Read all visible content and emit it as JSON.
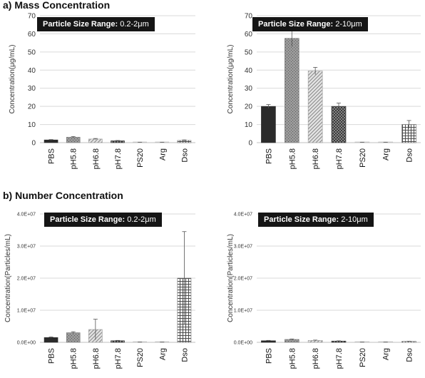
{
  "sections": {
    "a": {
      "title": "a) Mass Concentration"
    },
    "b": {
      "title": "b) Number Concentration"
    }
  },
  "panels": [
    {
      "size_key": "Particle Size Range:",
      "size_value": "0.2-2μm"
    },
    {
      "size_key": "Particle Size Range:",
      "size_value": "2-10μm"
    },
    {
      "size_key": "Particle Size Range:",
      "size_value": "0.2-2μm"
    },
    {
      "size_key": "Particle Size Range:",
      "size_value": "2-10μm"
    }
  ],
  "colors": {
    "gridline": "#d9d9d9",
    "axis": "#bfbfbf",
    "label_bg": "#151515"
  },
  "chart_data": [
    {
      "type": "bar",
      "title": "Particle Size Range: 0.2-2μm",
      "ylabel": "Concentration(μg/mL)",
      "categories": [
        "PBS",
        "pH5.8",
        "pH6.8",
        "pH7.8",
        "PS20",
        "Arg",
        "Dso"
      ],
      "values": [
        1.5,
        3,
        2,
        1,
        0.2,
        0.2,
        1.2
      ],
      "errors": [
        0.2,
        0.4,
        0.3,
        0.2,
        0.05,
        0.05,
        0.3
      ],
      "ylim": [
        0,
        70
      ],
      "yticks": [
        "0",
        "10",
        "20",
        "30",
        "40",
        "50",
        "60",
        "70"
      ],
      "grid": true
    },
    {
      "type": "bar",
      "title": "Particle Size Range: 2-10μm",
      "ylabel": "Concentration(μg/mL)",
      "categories": [
        "PBS",
        "pH5.8",
        "pH6.8",
        "pH7.8",
        "PS20",
        "Arg",
        "Dso"
      ],
      "values": [
        20,
        57.5,
        39.5,
        20,
        0.2,
        0.2,
        10
      ],
      "errors": [
        1,
        4.5,
        2,
        1.8,
        0.05,
        0.05,
        2.2
      ],
      "ylim": [
        0,
        70
      ],
      "yticks": [
        "0",
        "10",
        "20",
        "30",
        "40",
        "50",
        "60",
        "70"
      ],
      "grid": true
    },
    {
      "type": "bar",
      "title": "Particle Size Range: 0.2-2μm",
      "ylabel": "Concentration(Particles/mL)",
      "categories": [
        "PBS",
        "pH5.8",
        "pH6.8",
        "pH7.8",
        "PS20",
        "Arg",
        "Dso"
      ],
      "values": [
        1500000,
        3000000,
        4000000,
        500000,
        50000,
        50000,
        20000000
      ],
      "errors": [
        200000,
        300000,
        3200000,
        100000,
        10000,
        10000,
        14500000
      ],
      "ylim": [
        0,
        40000000
      ],
      "yticks": [
        "0.0E+00",
        "1.0E+07",
        "2.0E+07",
        "3.0E+07",
        "4.0E+07"
      ],
      "grid": true
    },
    {
      "type": "bar",
      "title": "Particle Size Range: 2-10μm",
      "ylabel": "Concentration(Particles/mL)",
      "categories": [
        "PBS",
        "pH5.8",
        "pH6.8",
        "pH7.8",
        "PS20",
        "Arg",
        "Dso"
      ],
      "values": [
        500000,
        900000,
        600000,
        400000,
        50000,
        50000,
        300000
      ],
      "errors": [
        100000,
        150000,
        100000,
        80000,
        10000,
        10000,
        60000
      ],
      "ylim": [
        0,
        40000000
      ],
      "yticks": [
        "0.0E+00",
        "1.0E+07",
        "2.0E+07",
        "3.0E+07",
        "4.0E+07"
      ],
      "grid": true
    }
  ]
}
